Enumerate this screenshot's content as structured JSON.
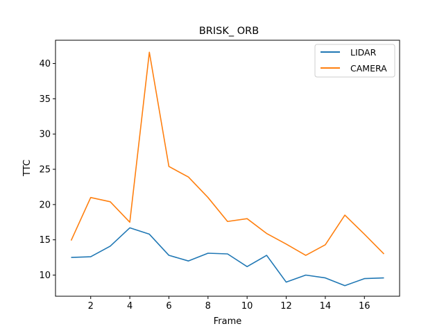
{
  "chart_data": {
    "type": "line",
    "title": "BRISK_ ORB",
    "xlabel": "Frame",
    "ylabel": "TTC",
    "xlim": [
      0.2,
      17.8
    ],
    "ylim": [
      7.0,
      43.3
    ],
    "xticks": [
      2,
      4,
      6,
      8,
      10,
      12,
      14,
      16
    ],
    "yticks": [
      10,
      15,
      20,
      25,
      30,
      35,
      40
    ],
    "grid": false,
    "legend_position": "top-right",
    "x": [
      1,
      2,
      3,
      4,
      5,
      6,
      7,
      8,
      9,
      10,
      11,
      12,
      13,
      14,
      15,
      16,
      17
    ],
    "series": [
      {
        "name": "LIDAR",
        "color": "#1f77b4",
        "values": [
          12.5,
          12.6,
          14.1,
          16.7,
          15.8,
          12.8,
          12.0,
          13.1,
          13.0,
          11.2,
          12.8,
          9.0,
          10.0,
          9.6,
          8.5,
          9.5,
          9.6
        ]
      },
      {
        "name": "CAMERA",
        "color": "#ff7f0e",
        "values": [
          14.9,
          21.0,
          20.4,
          17.5,
          41.6,
          25.4,
          23.9,
          21.0,
          17.6,
          18.0,
          15.9,
          14.4,
          12.8,
          14.3,
          18.5,
          15.8,
          13.0
        ]
      }
    ]
  }
}
